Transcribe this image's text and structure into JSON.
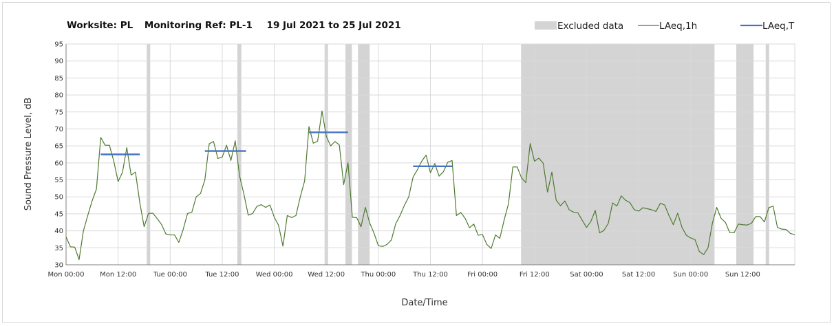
{
  "chart_data": {
    "type": "line",
    "title_parts": [
      "Worksite: PL",
      "Monitoring Ref: PL-1",
      "19 Jul 2021 to 25 Jul 2021"
    ],
    "xlabel": "Date/Time",
    "ylabel": "Sound Pressure Level, dB",
    "ylim": [
      30,
      95
    ],
    "yticks": [
      30,
      35,
      40,
      45,
      50,
      55,
      60,
      65,
      70,
      75,
      80,
      85,
      90,
      95
    ],
    "xlim_hours": [
      0,
      168
    ],
    "xticks": [
      {
        "h": 0,
        "label": "Mon 00:00"
      },
      {
        "h": 12,
        "label": "Mon 12:00"
      },
      {
        "h": 24,
        "label": "Tue 00:00"
      },
      {
        "h": 36,
        "label": "Tue 12:00"
      },
      {
        "h": 48,
        "label": "Wed 00:00"
      },
      {
        "h": 60,
        "label": "Wed 12:00"
      },
      {
        "h": 72,
        "label": "Thu 00:00"
      },
      {
        "h": 84,
        "label": "Thu 12:00"
      },
      {
        "h": 96,
        "label": "Fri 00:00"
      },
      {
        "h": 108,
        "label": "Fri 12:00"
      },
      {
        "h": 120,
        "label": "Sat 00:00"
      },
      {
        "h": 132,
        "label": "Sat 12:00"
      },
      {
        "h": 144,
        "label": "Sun 00:00"
      },
      {
        "h": 156,
        "label": "Sun 12:00"
      }
    ],
    "grid": true,
    "legend_position": "top-right",
    "legend": {
      "excluded": "Excluded data",
      "laeq1h": "LAeq,1h",
      "laeqT": "LAeq,T"
    },
    "colors": {
      "laeq1h": "#4e7a2f",
      "laeqT": "#4472c4",
      "excluded": "#d4d4d4",
      "grid": "#d9d9d9"
    },
    "excluded_ranges": [
      [
        18.6,
        19.4
      ],
      [
        39.5,
        40.4
      ],
      [
        59.6,
        60.4
      ],
      [
        64.4,
        65.9
      ],
      [
        67.3,
        70.0
      ],
      [
        104.9,
        149.5
      ],
      [
        154.5,
        158.5
      ],
      [
        161.3,
        162.1
      ]
    ],
    "laeqT_segments": [
      {
        "x": [
          8,
          17
        ],
        "y": 62.5
      },
      {
        "x": [
          32,
          41.5
        ],
        "y": 63.5
      },
      {
        "x": [
          56,
          65
        ],
        "y": 69
      },
      {
        "x": [
          80,
          89
        ],
        "y": 59
      }
    ],
    "laeq1h": [
      38.2,
      35.3,
      35.2,
      31.5,
      40,
      44.5,
      48.8,
      52.3,
      67.5,
      65.2,
      65.2,
      60.5,
      54.5,
      57.2,
      64.5,
      56.4,
      57.3,
      48.3,
      41.2,
      45.1,
      45.2,
      43.6,
      41.9,
      39.1,
      38.8,
      38.8,
      36.6,
      40.4,
      45.1,
      45.5,
      50,
      51,
      55,
      65.6,
      66.3,
      61.3,
      61.7,
      65.2,
      60.7,
      66.5,
      56.2,
      50.8,
      44.6,
      45.1,
      47.2,
      47.7,
      46.9,
      47.6,
      44,
      41.6,
      35.5,
      44.5,
      43.9,
      44.5,
      50,
      54.7,
      70.7,
      65.8,
      66.4,
      75.3,
      67.8,
      65,
      66.3,
      65.3,
      53.6,
      60.1,
      44,
      43.9,
      41.2,
      46.9,
      42.3,
      39.3,
      35.6,
      35.4,
      36,
      37.3,
      42.1,
      44.5,
      47.5,
      50,
      55.8,
      58,
      60.5,
      62.3,
      57.1,
      59.8,
      56.1,
      57.4,
      60.2,
      60.7,
      44.5,
      45.4,
      43.7,
      40.9,
      42,
      38.7,
      38.9,
      36,
      34.8,
      38.8,
      37.8,
      43.2,
      48,
      58.8,
      58.8,
      55.6,
      54.2,
      65.7,
      60.5,
      61.4,
      59.9,
      51.4,
      57.3,
      49,
      47.4,
      48.8,
      46.2,
      45.5,
      45.3,
      43.1,
      41,
      42.8,
      46,
      39.4,
      40.1,
      42.2,
      48.2,
      47.3,
      50.3,
      49,
      48.3,
      46.2,
      45.8,
      46.8,
      46.5,
      46.2,
      45.7,
      48.1,
      47.6,
      44.5,
      41.8,
      45.2,
      41,
      38.7,
      37.9,
      37.4,
      33.9,
      33,
      35,
      42.2,
      46.9,
      43.7,
      42.5,
      39.5,
      39.4,
      42,
      41.8,
      41.7,
      42.2,
      44.2,
      44.2,
      42.6,
      46.8,
      47.3,
      41,
      40.5,
      40.4,
      39.2,
      38.9
    ]
  }
}
